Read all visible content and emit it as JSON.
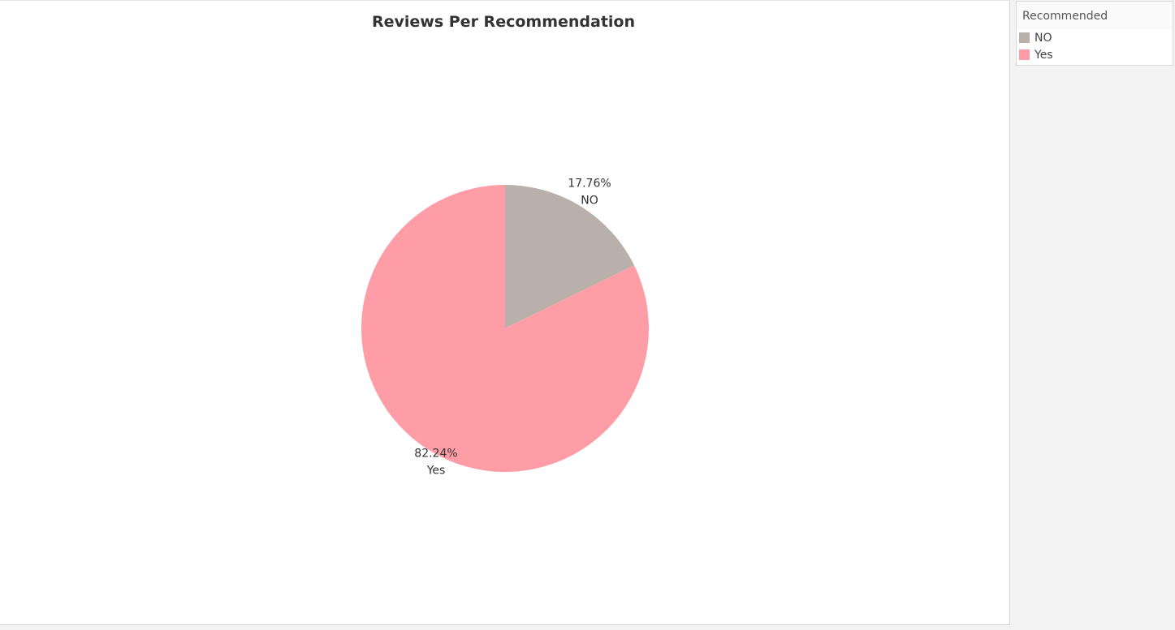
{
  "chart_data": {
    "type": "pie",
    "title": "Reviews Per Recommendation",
    "start_angle_deg": 0,
    "direction": "clockwise",
    "slices": [
      {
        "label": "NO",
        "value": 17.76,
        "display": "17.76%",
        "color": "#bab0ab"
      },
      {
        "label": "Yes",
        "value": 82.24,
        "display": "82.24%",
        "color": "#ff9da7"
      }
    ]
  },
  "legend": {
    "title": "Recommended",
    "items": [
      {
        "label": "NO",
        "color": "#bab0ab"
      },
      {
        "label": "Yes",
        "color": "#ff9da7"
      }
    ]
  }
}
